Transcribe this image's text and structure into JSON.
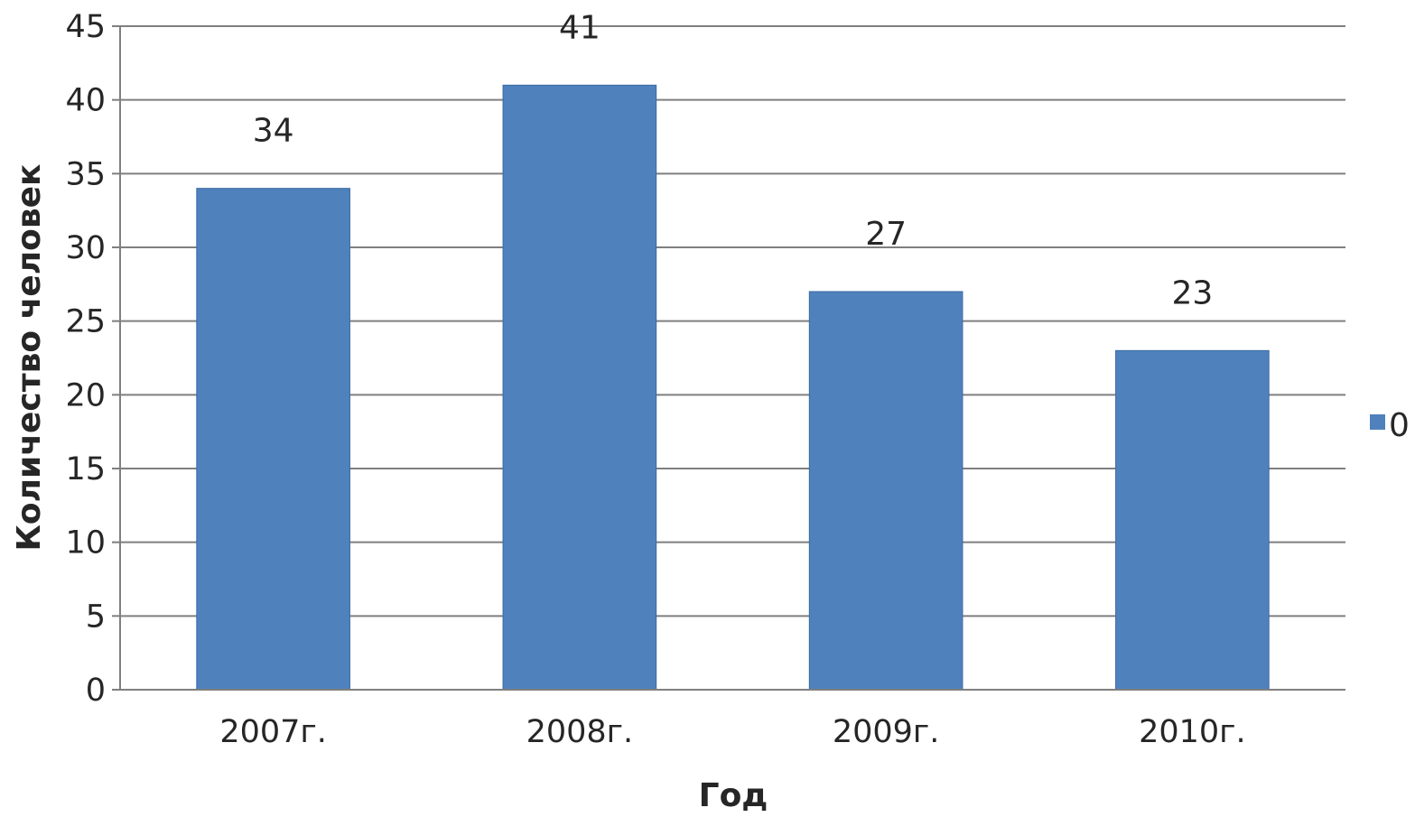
{
  "chart_data": {
    "type": "bar",
    "categories": [
      "2007г.",
      "2008г.",
      "2009г.",
      "2010г."
    ],
    "series": [
      {
        "name": "0",
        "values": [
          34,
          41,
          27,
          23
        ],
        "color": "#4F81BD"
      }
    ],
    "data_labels": [
      "34",
      "41",
      "27",
      "23"
    ],
    "xlabel": "Год",
    "ylabel": "Количество  человек",
    "ylim": [
      0,
      45
    ],
    "yticks": [
      0,
      5,
      10,
      15,
      20,
      25,
      30,
      35,
      40,
      45
    ],
    "grid": true,
    "legend_position": "right"
  }
}
